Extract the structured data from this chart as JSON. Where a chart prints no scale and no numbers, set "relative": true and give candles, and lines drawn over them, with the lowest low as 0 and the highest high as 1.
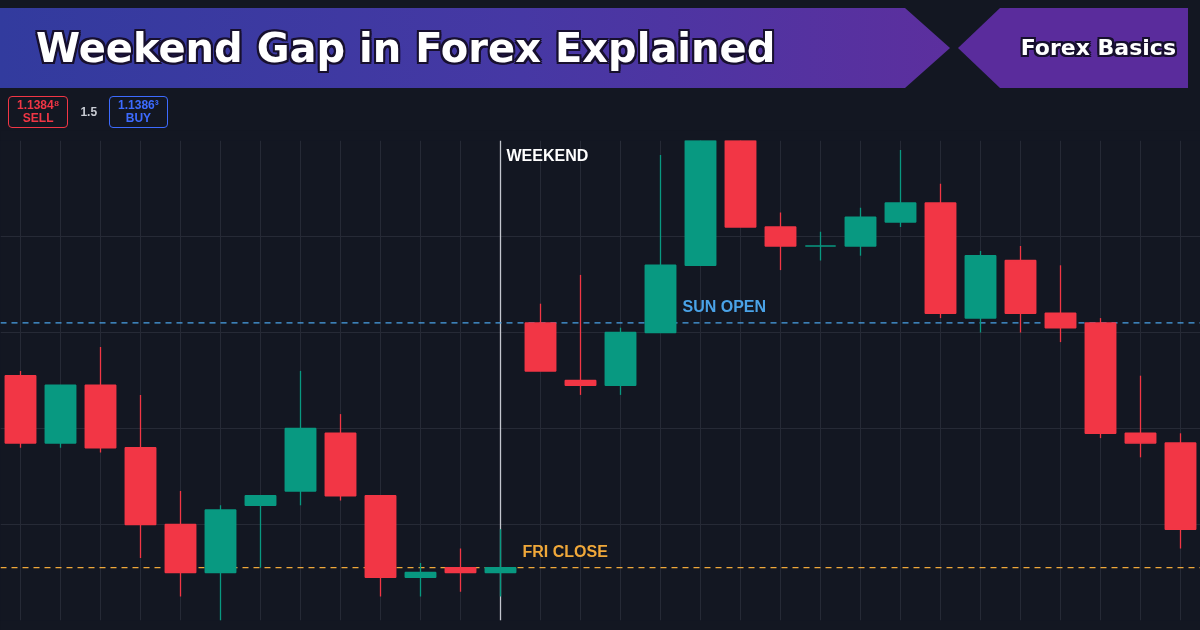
{
  "chart_data": {
    "type": "candlestick",
    "title": "Weekend Gap in Forex Explained",
    "subtitle": "Forex Basics",
    "relative": true,
    "categories": [
      null,
      null,
      null,
      null,
      null,
      null,
      null,
      null,
      null,
      null,
      null,
      null,
      null,
      null,
      null,
      null,
      null,
      null,
      null,
      null,
      null,
      null,
      null,
      null,
      null,
      null,
      null,
      null,
      null,
      null
    ],
    "ohlc": [
      [
        0.51,
        0.52,
        0.36,
        0.37
      ],
      [
        0.37,
        0.49,
        0.36,
        0.49
      ],
      [
        0.49,
        0.57,
        0.35,
        0.36
      ],
      [
        0.36,
        0.47,
        0.13,
        0.2
      ],
      [
        0.2,
        0.27,
        0.05,
        0.1
      ],
      [
        0.1,
        0.24,
        0,
        0.23
      ],
      [
        0.24,
        0.26,
        0.11,
        0.26
      ],
      [
        0.27,
        0.52,
        0.24,
        0.4
      ],
      [
        0.39,
        0.43,
        0.25,
        0.26
      ],
      [
        0.26,
        0.26,
        0.05,
        0.09
      ],
      [
        0.09,
        0.12,
        0.05,
        0.1
      ],
      [
        0.11,
        0.15,
        0.06,
        0.1
      ],
      [
        0.1,
        0.19,
        0.05,
        0.11
      ],
      [
        0.62,
        0.66,
        0.52,
        0.52
      ],
      [
        0.5,
        0.72,
        0.47,
        0.49
      ],
      [
        0.49,
        0.61,
        0.47,
        0.6
      ],
      [
        0.6,
        0.97,
        0.6,
        0.74
      ],
      [
        0.74,
        1,
        0.74,
        1
      ],
      [
        1,
        1,
        0.82,
        0.82
      ],
      [
        0.82,
        0.85,
        0.73,
        0.78
      ],
      [
        0.78,
        0.81,
        0.75,
        0.78
      ],
      [
        0.78,
        0.86,
        0.76,
        0.84
      ],
      [
        0.83,
        0.98,
        0.82,
        0.87
      ],
      [
        0.87,
        0.91,
        0.63,
        0.64
      ],
      [
        0.63,
        0.77,
        0.6,
        0.76
      ],
      [
        0.75,
        0.78,
        0.6,
        0.64
      ],
      [
        0.64,
        0.74,
        0.58,
        0.61
      ],
      [
        0.62,
        0.63,
        0.38,
        0.39
      ],
      [
        0.39,
        0.51,
        0.34,
        0.37
      ],
      [
        0.37,
        0.39,
        0.15,
        0.19
      ]
    ],
    "colors": [
      "#f23645",
      "#089981",
      "#f23645",
      "#f23645",
      "#f23645",
      "#089981",
      "#089981",
      "#089981",
      "#f23645",
      "#f23645",
      "#089981",
      "#f23645",
      "#089981",
      "#f23645",
      "#f23645",
      "#089981",
      "#089981",
      "#089981",
      "#f23645",
      "#f23645",
      "#089981",
      "#089981",
      "#089981",
      "#f23645",
      "#089981",
      "#f23645",
      "#f23645",
      "#f23645",
      "#f23645",
      "#f23645"
    ],
    "ref_lines": [
      {
        "axis": "y",
        "value": 0.62,
        "label": "SUN OPEN",
        "color": "#4aa3e8",
        "line_style": "dashed"
      },
      {
        "axis": "y",
        "value": 0.11,
        "label": "FRI CLOSE",
        "color": "#f0a83a",
        "line_style": "dashed"
      }
    ],
    "annotations": [
      "WEEKEND",
      "1.1384⁸\nSELL",
      "1.5",
      "1.1386³\nBUY"
    ],
    "grid": true,
    "tick_labels": false
  }
}
